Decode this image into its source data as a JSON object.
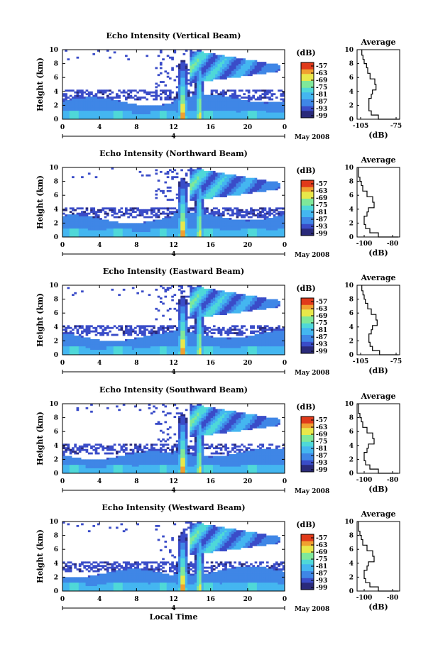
{
  "chart_data": [
    {
      "type": "heatmap",
      "title": "Echo Intensity (Vertical Beam)",
      "ylabel": "Height (km)",
      "y_ticks": [
        "0",
        "2",
        "4",
        "6",
        "8",
        "10"
      ],
      "ylim": [
        0,
        10
      ],
      "x_ticks": [
        "0",
        "4",
        "8",
        "12",
        "16",
        "20",
        "0"
      ],
      "xlim": [
        0,
        24
      ],
      "date_label": "4",
      "date_suffix": "May 2008",
      "colorbar_unit": "(dB)",
      "colorbar_ticks": [
        "-57",
        "-63",
        "-69",
        "-75",
        "-81",
        "-87",
        "-93",
        "-99"
      ],
      "profile": {
        "title": "Average",
        "xlabel": "(dB)",
        "x_ticks": [
          "-105",
          "-75"
        ],
        "y_ticks": [
          "0",
          "2",
          "4",
          "6",
          "8",
          "10"
        ],
        "xlim": [
          -108,
          -72
        ],
        "x": [
          -72,
          -90,
          -96,
          -98,
          -98,
          -98,
          -96,
          -95,
          -92,
          -93,
          -97,
          -99,
          -100,
          -102,
          -103,
          -104
        ],
        "y": [
          0,
          0.6,
          1.2,
          1.8,
          2.5,
          3.0,
          3.6,
          4.2,
          5.0,
          5.8,
          6.6,
          7.4,
          8.0,
          8.6,
          9.2,
          10
        ]
      }
    },
    {
      "type": "heatmap",
      "title": "Echo Intensity (Northward Beam)",
      "ylabel": "Height (km)",
      "y_ticks": [
        "0",
        "2",
        "4",
        "6",
        "8",
        "10"
      ],
      "ylim": [
        0,
        10
      ],
      "x_ticks": [
        "0",
        "4",
        "8",
        "12",
        "16",
        "20",
        "0"
      ],
      "xlim": [
        0,
        24
      ],
      "date_label": "4",
      "date_suffix": "May 2008",
      "colorbar_unit": "(dB)",
      "colorbar_ticks": [
        "-57",
        "-63",
        "-69",
        "-75",
        "-81",
        "-87",
        "-93",
        "-99"
      ],
      "profile": {
        "title": "Average",
        "xlabel": "(dB)",
        "x_ticks": [
          "-100",
          "-80"
        ],
        "y_ticks": [
          "0",
          "2",
          "4",
          "6",
          "8",
          "10"
        ],
        "xlim": [
          -105,
          -75
        ],
        "x": [
          -76,
          -90,
          -96,
          -99,
          -100,
          -100,
          -98,
          -97,
          -93,
          -94,
          -98,
          -101,
          -102,
          -103,
          -104,
          -104
        ],
        "y": [
          0,
          0.6,
          1.2,
          1.8,
          2.5,
          3.0,
          3.6,
          4.2,
          5.0,
          5.8,
          6.6,
          7.4,
          8.0,
          8.6,
          9.2,
          10
        ]
      }
    },
    {
      "type": "heatmap",
      "title": "Echo Intensity (Eastward Beam)",
      "ylabel": "Height (km)",
      "y_ticks": [
        "0",
        "2",
        "4",
        "6",
        "8",
        "10"
      ],
      "ylim": [
        0,
        10
      ],
      "x_ticks": [
        "0",
        "4",
        "8",
        "12",
        "16",
        "20",
        "0"
      ],
      "xlim": [
        0,
        24
      ],
      "date_label": "4",
      "date_suffix": "May 2008",
      "colorbar_unit": "(dB)",
      "colorbar_ticks": [
        "-57",
        "-63",
        "-69",
        "-75",
        "-81",
        "-87",
        "-93",
        "-99"
      ],
      "profile": {
        "title": "Average",
        "xlabel": "(dB)",
        "x_ticks": [
          "-105",
          "-75"
        ],
        "y_ticks": [
          "0",
          "2",
          "4",
          "6",
          "8",
          "10"
        ],
        "xlim": [
          -108,
          -72
        ],
        "x": [
          -73,
          -89,
          -95,
          -97,
          -98,
          -98,
          -96,
          -95,
          -91,
          -92,
          -96,
          -99,
          -101,
          -102,
          -103,
          -104
        ],
        "y": [
          0,
          0.6,
          1.2,
          1.8,
          2.5,
          3.0,
          3.6,
          4.2,
          5.0,
          5.8,
          6.6,
          7.4,
          8.0,
          8.6,
          9.2,
          10
        ]
      }
    },
    {
      "type": "heatmap",
      "title": "Echo Intensity (Southward Beam)",
      "ylabel": "Height (km)",
      "y_ticks": [
        "0",
        "2",
        "4",
        "6",
        "8",
        "10"
      ],
      "ylim": [
        0,
        10
      ],
      "x_ticks": [
        "0",
        "4",
        "8",
        "12",
        "16",
        "20",
        "0"
      ],
      "xlim": [
        0,
        24
      ],
      "date_label": "4",
      "date_suffix": "May 2008",
      "colorbar_unit": "(dB)",
      "colorbar_ticks": [
        "-57",
        "-63",
        "-69",
        "-75",
        "-81",
        "-87",
        "-93",
        "-99"
      ],
      "profile": {
        "title": "Average",
        "xlabel": "(dB)",
        "x_ticks": [
          "-100",
          "-80"
        ],
        "y_ticks": [
          "0",
          "2",
          "4",
          "6",
          "8",
          "10"
        ],
        "xlim": [
          -105,
          -75
        ],
        "x": [
          -76,
          -90,
          -96,
          -99,
          -100,
          -100,
          -98,
          -97,
          -93,
          -94,
          -98,
          -101,
          -102,
          -103,
          -104,
          -104
        ],
        "y": [
          0,
          0.6,
          1.2,
          1.8,
          2.5,
          3.0,
          3.6,
          4.2,
          5.0,
          5.8,
          6.6,
          7.4,
          8.0,
          8.6,
          9.2,
          10
        ]
      }
    },
    {
      "type": "heatmap",
      "title": "Echo Intensity (Westward Beam)",
      "ylabel": "Height (km)",
      "y_ticks": [
        "0",
        "2",
        "4",
        "6",
        "8",
        "10"
      ],
      "ylim": [
        0,
        10
      ],
      "x_ticks": [
        "0",
        "4",
        "8",
        "12",
        "16",
        "20",
        "0"
      ],
      "xlim": [
        0,
        24
      ],
      "date_label": "4",
      "date_suffix": "May 2008",
      "xlabel": "Local Time",
      "colorbar_unit": "(dB)",
      "colorbar_ticks": [
        "-57",
        "-63",
        "-69",
        "-75",
        "-81",
        "-87",
        "-93",
        "-99"
      ],
      "profile": {
        "title": "Average",
        "xlabel": "(dB)",
        "x_ticks": [
          "-100",
          "-80"
        ],
        "y_ticks": [
          "0",
          "2",
          "4",
          "6",
          "8",
          "10"
        ],
        "xlim": [
          -105,
          -75
        ],
        "x": [
          -76,
          -90,
          -96,
          -99,
          -100,
          -100,
          -98,
          -97,
          -93,
          -94,
          -98,
          -101,
          -102,
          -103,
          -104,
          -104
        ],
        "y": [
          0,
          0.6,
          1.2,
          1.8,
          2.5,
          3.0,
          3.6,
          4.2,
          5.0,
          5.8,
          6.6,
          7.4,
          8.0,
          8.6,
          9.2,
          10
        ]
      }
    }
  ],
  "colorscale": [
    "#2a2a7a",
    "#3a4cc8",
    "#3f86e6",
    "#44b6f0",
    "#4fd8d8",
    "#7fe89a",
    "#e8e84a",
    "#f0a030",
    "#e03a1a"
  ]
}
